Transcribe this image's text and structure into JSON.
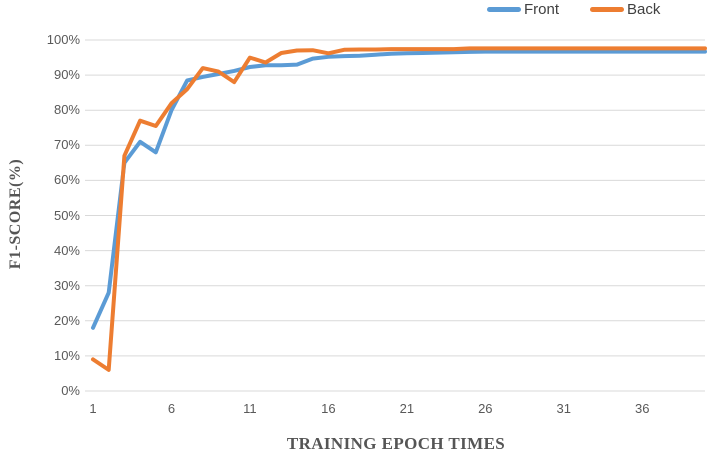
{
  "chart_data": {
    "type": "line",
    "title": "",
    "xlabel": "TRAINING EPOCH TIMES",
    "ylabel": "F1-SCORE(%)",
    "ylim": [
      0,
      100
    ],
    "grid": "horizontal",
    "legend_position": "top-right",
    "gridline_color": "#d9d9d9",
    "tick_label_color": "#595959",
    "axis_title_color": "#555555",
    "legend_text_color": "#404040",
    "x": [
      1,
      2,
      3,
      4,
      5,
      6,
      7,
      8,
      9,
      10,
      11,
      12,
      13,
      14,
      15,
      16,
      17,
      18,
      19,
      20,
      21,
      22,
      23,
      24,
      25,
      26,
      27,
      28,
      29,
      30,
      31,
      32,
      33,
      34,
      35,
      36,
      37,
      38,
      39,
      40
    ],
    "series": [
      {
        "name": "Front",
        "color": "#5b9bd5",
        "values": [
          18,
          28,
          65,
          71,
          68,
          80,
          88.5,
          89.5,
          90.3,
          91.2,
          92.3,
          92.8,
          92.8,
          93,
          94.7,
          95.2,
          95.4,
          95.5,
          95.8,
          96.1,
          96.2,
          96.3,
          96.4,
          96.5,
          96.6,
          96.7,
          96.7,
          96.7,
          96.7,
          96.7,
          96.7,
          96.7,
          96.7,
          96.7,
          96.7,
          96.7,
          96.7,
          96.7,
          96.7,
          96.7
        ]
      },
      {
        "name": "Back",
        "color": "#ed7d31",
        "values": [
          9,
          6,
          67,
          77,
          75.5,
          82,
          86,
          92,
          91,
          88,
          95,
          93.6,
          96.3,
          97,
          97.1,
          96.2,
          97.2,
          97.3,
          97.3,
          97.4,
          97.4,
          97.4,
          97.4,
          97.4,
          97.6,
          97.6,
          97.6,
          97.6,
          97.6,
          97.6,
          97.6,
          97.6,
          97.6,
          97.6,
          97.6,
          97.6,
          97.6,
          97.6,
          97.6,
          97.6
        ]
      }
    ],
    "y_ticks": [
      {
        "value": 0,
        "label": "0%"
      },
      {
        "value": 10,
        "label": "10%"
      },
      {
        "value": 20,
        "label": "20%"
      },
      {
        "value": 30,
        "label": "30%"
      },
      {
        "value": 40,
        "label": "40%"
      },
      {
        "value": 50,
        "label": "50%"
      },
      {
        "value": 60,
        "label": "60%"
      },
      {
        "value": 70,
        "label": "70%"
      },
      {
        "value": 80,
        "label": "80%"
      },
      {
        "value": 90,
        "label": "90%"
      },
      {
        "value": 100,
        "label": "100%"
      }
    ],
    "x_ticks": [
      {
        "value": 1,
        "label": "1"
      },
      {
        "value": 6,
        "label": "6"
      },
      {
        "value": 11,
        "label": "11"
      },
      {
        "value": 16,
        "label": "16"
      },
      {
        "value": 21,
        "label": "21"
      },
      {
        "value": 26,
        "label": "26"
      },
      {
        "value": 31,
        "label": "31"
      },
      {
        "value": 36,
        "label": "36"
      }
    ]
  }
}
